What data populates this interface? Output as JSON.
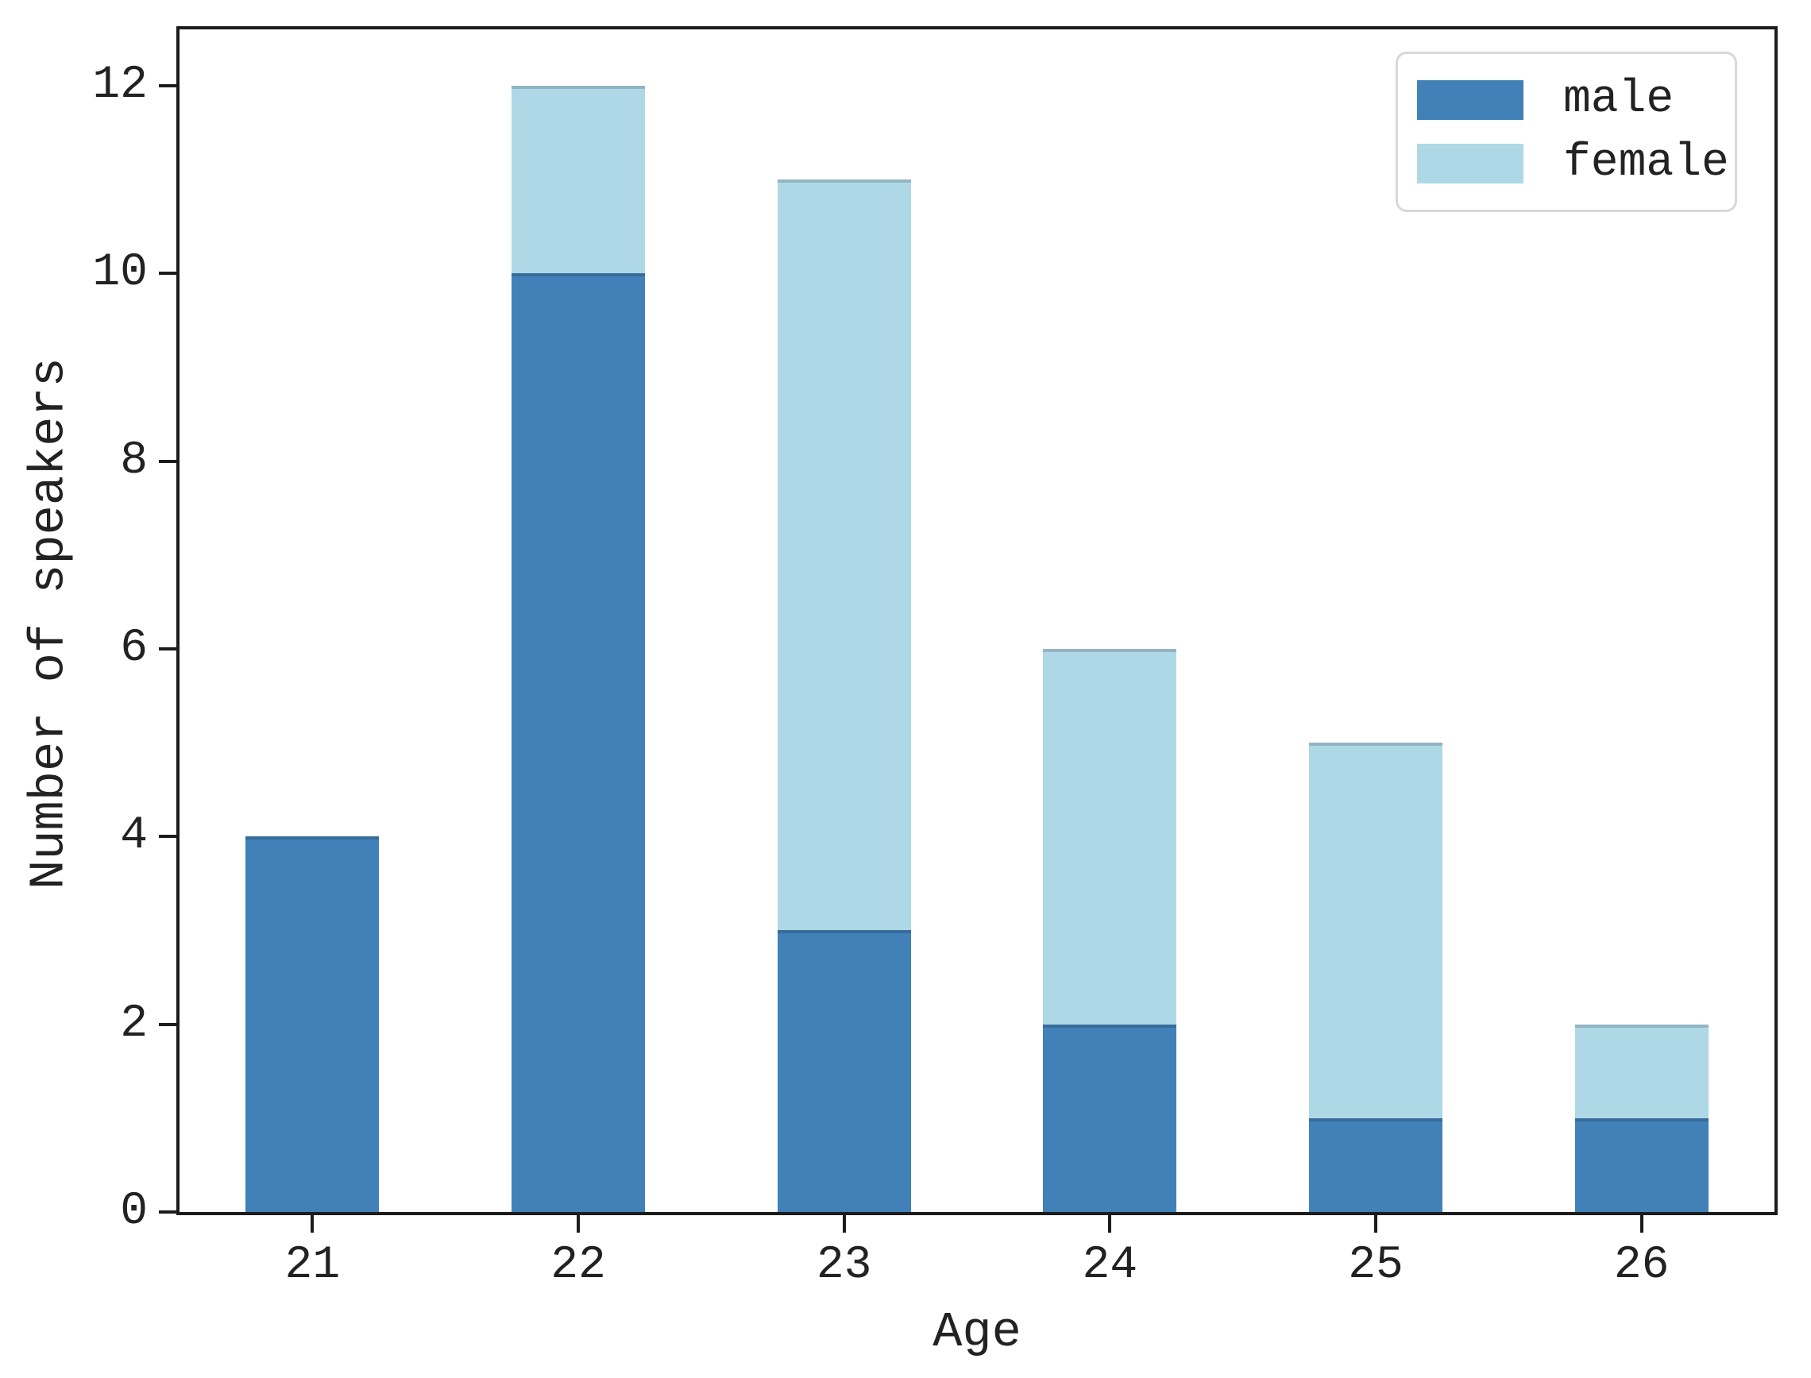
{
  "figure": {
    "background": "#ffffff",
    "axis_color": "#1c1c1c",
    "text_color": "#222222"
  },
  "chart_data": {
    "type": "bar",
    "stacked": true,
    "title": "",
    "xlabel": "Age",
    "ylabel": "Number of speakers",
    "categories": [
      "21",
      "22",
      "23",
      "24",
      "25",
      "26"
    ],
    "series": [
      {
        "name": "male",
        "color": "#4181b8",
        "values": [
          4,
          10,
          3,
          2,
          1,
          1
        ]
      },
      {
        "name": "female",
        "color": "#aed8e6",
        "values": [
          0,
          2,
          8,
          4,
          4,
          1
        ]
      }
    ],
    "totals": [
      4,
      12,
      11,
      6,
      5,
      2
    ],
    "y_ticks": [
      0,
      2,
      4,
      6,
      8,
      10,
      12
    ],
    "ylim": [
      0,
      12.6
    ],
    "grid": false,
    "legend_position": "upper right",
    "legend_labels": [
      "male",
      "female"
    ]
  }
}
